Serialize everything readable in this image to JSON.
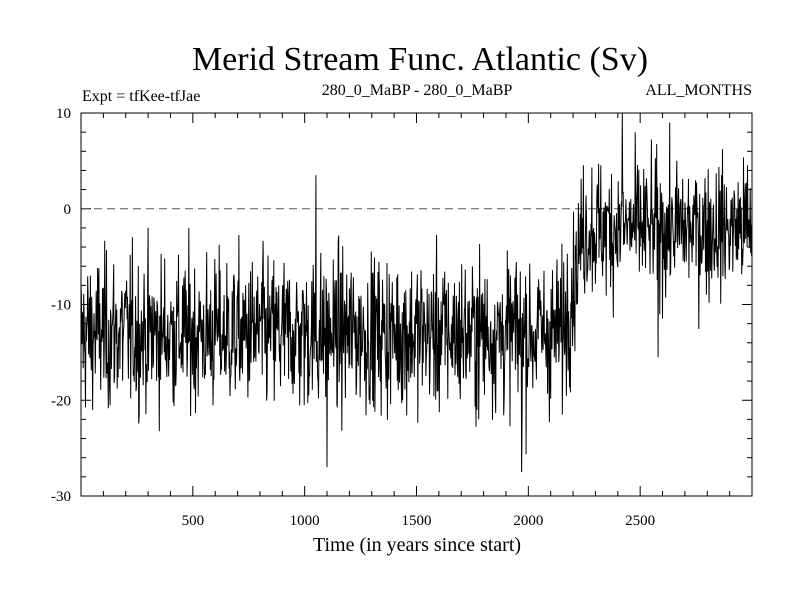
{
  "chart_data": {
    "type": "line",
    "title": "Merid Stream Func. Atlantic (Sv)",
    "experiment_label": "Expt = tfKee-tfJae",
    "period_label": "280_0_MaBP - 280_0_MaBP",
    "season_label": "ALL_MONTHS",
    "xlabel": "Time (in years since start)",
    "ylabel": "",
    "xlim": [
      0,
      3000
    ],
    "ylim": [
      -30,
      10
    ],
    "x_ticks": [
      500,
      1000,
      1500,
      2000,
      2500
    ],
    "y_ticks": [
      10,
      0,
      -10,
      -20,
      -30
    ],
    "reference_line": {
      "y": 0,
      "style": "dashed"
    },
    "series": [
      {
        "color": "#000000",
        "mean_segments": [
          {
            "x_start": 0,
            "x_end": 2150,
            "mean": -13,
            "noise_sd": 4,
            "min": -27.5,
            "max": 3.5
          },
          {
            "x_start": 2150,
            "x_end": 2250,
            "mean": -7,
            "noise_sd": 4,
            "note_transition": true
          },
          {
            "x_start": 2250,
            "x_end": 3000,
            "mean": -2,
            "noise_sd": 3.5,
            "min": -15.5,
            "max": 10
          }
        ],
        "notable_points": [
          {
            "x": 1050,
            "y": 3.5
          },
          {
            "x": 1100,
            "y": -27
          },
          {
            "x": 1970,
            "y": -27.5
          },
          {
            "x": 2420,
            "y": 10
          },
          {
            "x": 2580,
            "y": -15.5
          }
        ]
      }
    ],
    "grid": false,
    "legend": "none"
  }
}
